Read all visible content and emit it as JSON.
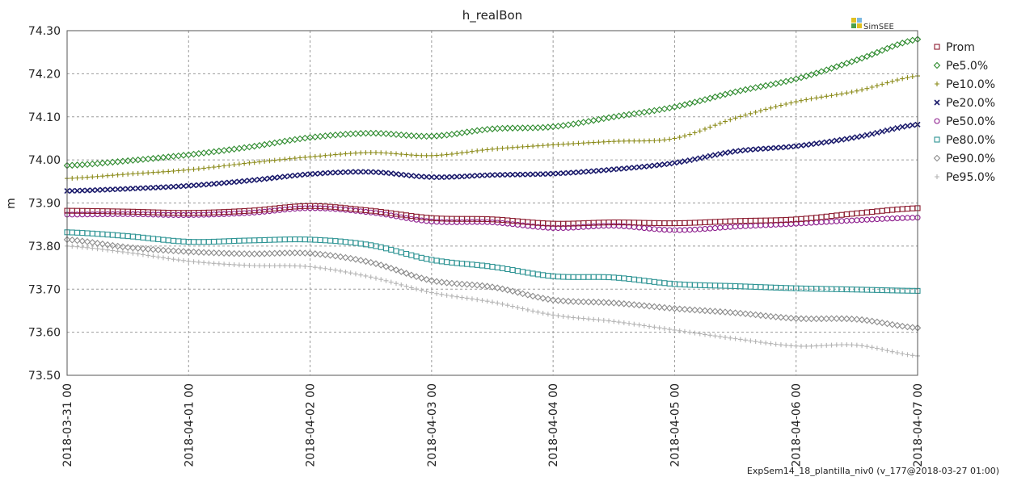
{
  "chart_data": {
    "type": "line",
    "title": "h_realBon",
    "xlabel": "",
    "ylabel": "m",
    "ylim": [
      73.5,
      74.3
    ],
    "yticks": [
      "73.50",
      "73.60",
      "73.70",
      "73.80",
      "73.90",
      "74.00",
      "74.10",
      "74.20",
      "74.30"
    ],
    "xticks": [
      "2018-03-31 00",
      "2018-04-01 00",
      "2018-04-02 00",
      "2018-04-03 00",
      "2018-04-04 00",
      "2018-04-05 00",
      "2018-04-06 00",
      "2018-04-07 00"
    ],
    "grid": true,
    "legend_position": "right",
    "x": [
      0,
      0.5,
      1,
      1.5,
      2,
      2.5,
      3,
      3.5,
      4,
      4.5,
      5,
      5.5,
      6,
      6.5,
      7
    ],
    "series": [
      {
        "name": "Prom",
        "marker": "square",
        "color": "#8b1a2e",
        "values": [
          73.882,
          73.88,
          73.877,
          73.882,
          73.893,
          73.882,
          73.865,
          73.862,
          73.852,
          73.855,
          73.853,
          73.858,
          73.862,
          73.876,
          73.888
        ]
      },
      {
        "name": "Pe5.0%",
        "marker": "diamond",
        "color": "#2e8b2e",
        "values": [
          73.987,
          73.998,
          74.012,
          74.03,
          74.052,
          74.062,
          74.055,
          74.072,
          74.077,
          74.1,
          74.123,
          74.158,
          74.188,
          74.232,
          74.28
        ]
      },
      {
        "name": "Pe10.0%",
        "marker": "plus",
        "color": "#8b8b1a",
        "values": [
          73.957,
          73.967,
          73.977,
          73.993,
          74.007,
          74.017,
          74.01,
          74.025,
          74.035,
          74.043,
          74.05,
          74.097,
          74.135,
          74.16,
          74.195
        ]
      },
      {
        "name": "Pe20.0%",
        "marker": "cross",
        "color": "#1a1a6b",
        "values": [
          73.928,
          73.933,
          73.94,
          73.952,
          73.967,
          73.972,
          73.96,
          73.965,
          73.968,
          73.978,
          73.993,
          74.02,
          74.032,
          74.053,
          74.082
        ]
      },
      {
        "name": "Pe50.0%",
        "marker": "circle",
        "color": "#8b1a8b",
        "values": [
          73.873,
          73.874,
          73.872,
          73.877,
          73.888,
          73.878,
          73.857,
          73.855,
          73.842,
          73.847,
          73.837,
          73.845,
          73.852,
          73.86,
          73.866
        ]
      },
      {
        "name": "Pe80.0%",
        "marker": "square",
        "color": "#2e9494",
        "values": [
          73.832,
          73.823,
          73.81,
          73.813,
          73.815,
          73.802,
          73.768,
          73.752,
          73.73,
          73.727,
          73.712,
          73.707,
          73.702,
          73.699,
          73.696
        ]
      },
      {
        "name": "Pe90.0%",
        "marker": "diamond",
        "color": "#8c8c8c",
        "values": [
          73.815,
          73.797,
          73.787,
          73.782,
          73.783,
          73.762,
          73.72,
          73.705,
          73.675,
          73.668,
          73.655,
          73.645,
          73.632,
          73.63,
          73.61
        ]
      },
      {
        "name": "Pe95.0%",
        "marker": "plus",
        "color": "#b3b3b3",
        "values": [
          73.8,
          73.785,
          73.765,
          73.755,
          73.752,
          73.728,
          73.692,
          73.67,
          73.64,
          73.625,
          73.605,
          73.585,
          73.568,
          73.57,
          73.545
        ]
      }
    ]
  },
  "logo": {
    "text": "SimSEE"
  },
  "footer": {
    "text": "ExpSem14_18_plantilla_niv0 (v_177@2018-03-27 01:00)"
  }
}
